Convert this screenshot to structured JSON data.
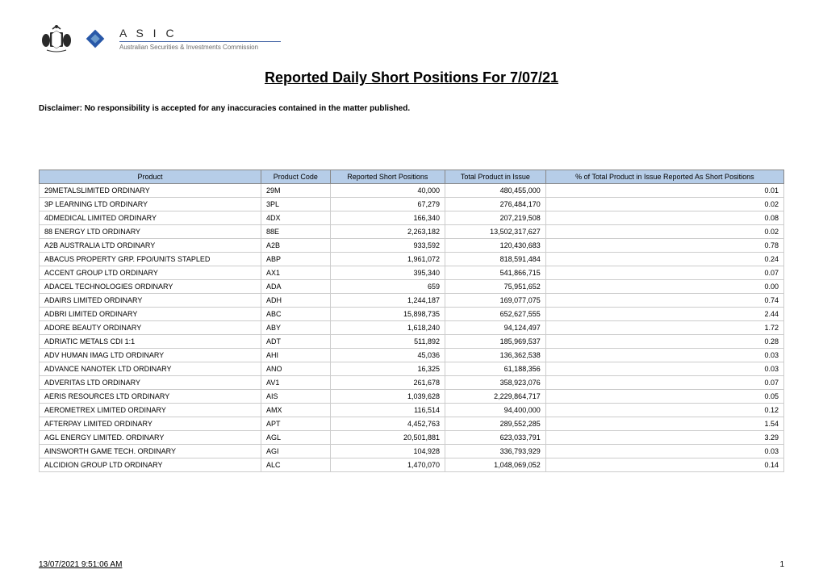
{
  "header": {
    "org_abbrev": "A S I C",
    "org_full": "Australian Securities & Investments Commission"
  },
  "title": "Reported Daily Short Positions For 7/07/21",
  "disclaimer": "Disclaimer: No responsibility is accepted for any inaccuracies contained in the matter published.",
  "table": {
    "header_bg": "#b6cde8",
    "border_color": "#cccccc",
    "columns": [
      "Product",
      "Product Code",
      "Reported Short Positions",
      "Total Product in Issue",
      "% of Total Product in Issue Reported As Short Positions"
    ],
    "rows": [
      [
        "29METALSLIMITED ORDINARY",
        "29M",
        "40,000",
        "480,455,000",
        "0.01"
      ],
      [
        "3P LEARNING LTD ORDINARY",
        "3PL",
        "67,279",
        "276,484,170",
        "0.02"
      ],
      [
        "4DMEDICAL LIMITED ORDINARY",
        "4DX",
        "166,340",
        "207,219,508",
        "0.08"
      ],
      [
        "88 ENERGY LTD ORDINARY",
        "88E",
        "2,263,182",
        "13,502,317,627",
        "0.02"
      ],
      [
        "A2B AUSTRALIA LTD ORDINARY",
        "A2B",
        "933,592",
        "120,430,683",
        "0.78"
      ],
      [
        "ABACUS PROPERTY GRP. FPO/UNITS STAPLED",
        "ABP",
        "1,961,072",
        "818,591,484",
        "0.24"
      ],
      [
        "ACCENT GROUP LTD ORDINARY",
        "AX1",
        "395,340",
        "541,866,715",
        "0.07"
      ],
      [
        "ADACEL TECHNOLOGIES ORDINARY",
        "ADA",
        "659",
        "75,951,652",
        "0.00"
      ],
      [
        "ADAIRS LIMITED ORDINARY",
        "ADH",
        "1,244,187",
        "169,077,075",
        "0.74"
      ],
      [
        "ADBRI LIMITED ORDINARY",
        "ABC",
        "15,898,735",
        "652,627,555",
        "2.44"
      ],
      [
        "ADORE BEAUTY ORDINARY",
        "ABY",
        "1,618,240",
        "94,124,497",
        "1.72"
      ],
      [
        "ADRIATIC METALS CDI 1:1",
        "ADT",
        "511,892",
        "185,969,537",
        "0.28"
      ],
      [
        "ADV HUMAN IMAG LTD ORDINARY",
        "AHI",
        "45,036",
        "136,362,538",
        "0.03"
      ],
      [
        "ADVANCE NANOTEK LTD ORDINARY",
        "ANO",
        "16,325",
        "61,188,356",
        "0.03"
      ],
      [
        "ADVERITAS LTD ORDINARY",
        "AV1",
        "261,678",
        "358,923,076",
        "0.07"
      ],
      [
        "AERIS RESOURCES LTD ORDINARY",
        "AIS",
        "1,039,628",
        "2,229,864,717",
        "0.05"
      ],
      [
        "AEROMETREX LIMITED ORDINARY",
        "AMX",
        "116,514",
        "94,400,000",
        "0.12"
      ],
      [
        "AFTERPAY LIMITED ORDINARY",
        "APT",
        "4,452,763",
        "289,552,285",
        "1.54"
      ],
      [
        "AGL ENERGY LIMITED. ORDINARY",
        "AGL",
        "20,501,881",
        "623,033,791",
        "3.29"
      ],
      [
        "AINSWORTH GAME TECH. ORDINARY",
        "AGI",
        "104,928",
        "336,793,929",
        "0.03"
      ],
      [
        "ALCIDION GROUP LTD ORDINARY",
        "ALC",
        "1,470,070",
        "1,048,069,052",
        "0.14"
      ]
    ]
  },
  "footer": {
    "timestamp": "13/07/2021  9:51:06 AM",
    "page": "1"
  }
}
